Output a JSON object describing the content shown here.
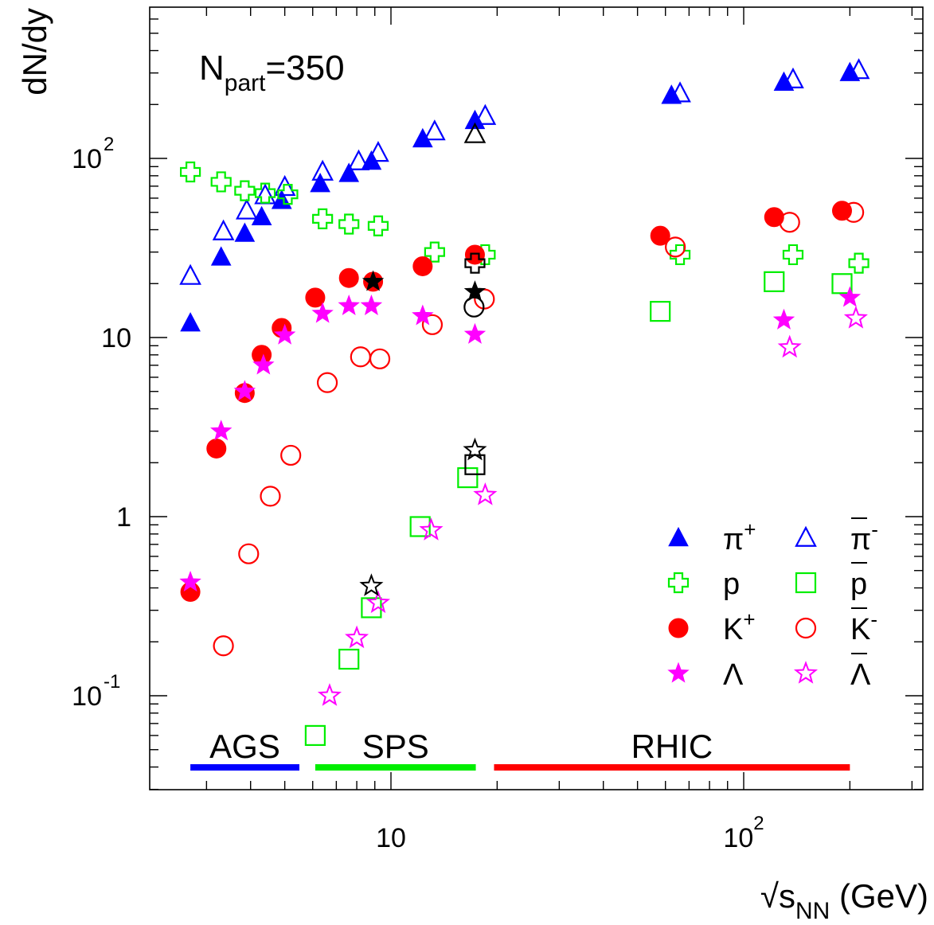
{
  "chart_data": {
    "type": "scatter",
    "title": "",
    "xlabel": "√s",
    "xlabel_sub": "NN",
    "xlabel_unit": " (GeV)",
    "ylabel": "dN/dy",
    "x_log": true,
    "y_log": true,
    "xlim": [
      2.2,
      600
    ],
    "ylim": [
      0.025,
      1000
    ],
    "x_ticks": [
      {
        "value": 10,
        "label": "10"
      },
      {
        "value": 100,
        "label": "10",
        "sup": "2"
      }
    ],
    "y_ticks": [
      {
        "value": 0.1,
        "label": "10",
        "sup": "-1"
      },
      {
        "value": 1,
        "label": "1"
      },
      {
        "value": 10,
        "label": "10"
      },
      {
        "value": 100,
        "label": "10",
        "sup": " 2"
      }
    ],
    "annotation": {
      "main": "N",
      "sub": "part",
      "rest": "=350"
    },
    "energy_ranges": [
      {
        "label": "AGS",
        "x0": 2.7,
        "x1": 5.5,
        "color": "#0000ff"
      },
      {
        "label": "SPS",
        "x0": 6.1,
        "x1": 17.4,
        "color": "#00ee00"
      },
      {
        "label": "RHIC",
        "x0": 19.6,
        "x1": 200,
        "color": "#ff0000"
      }
    ],
    "series": [
      {
        "name": "π",
        "sup": "+",
        "marker": "triangle",
        "filled": true,
        "color": "#0000ff",
        "points": [
          [
            2.7,
            12
          ],
          [
            3.3,
            28
          ],
          [
            3.85,
            38
          ],
          [
            4.3,
            47
          ],
          [
            4.9,
            58
          ],
          [
            6.3,
            72
          ],
          [
            7.6,
            82
          ],
          [
            8.8,
            96
          ],
          [
            12.3,
            128
          ],
          [
            17.3,
            162
          ],
          [
            62.4,
            224
          ],
          [
            130,
            265
          ],
          [
            200,
            300
          ]
        ]
      },
      {
        "name": "π",
        "sup": "-",
        "overline": true,
        "marker": "triangle",
        "filled": false,
        "color": "#0000ff",
        "points": [
          [
            2.7,
            22
          ],
          [
            3.35,
            39
          ],
          [
            3.9,
            51
          ],
          [
            4.4,
            62
          ],
          [
            5.0,
            69
          ],
          [
            6.4,
            84
          ],
          [
            8.1,
            96
          ],
          [
            9.2,
            107
          ],
          [
            13.3,
            141
          ],
          [
            18.5,
            172
          ],
          [
            66,
            230
          ],
          [
            138,
            275
          ],
          [
            212,
            310
          ]
        ]
      },
      {
        "name": "p",
        "marker": "cross",
        "filled": false,
        "color": "#00ee00",
        "points": [
          [
            2.7,
            84
          ],
          [
            3.3,
            74
          ],
          [
            3.85,
            66
          ],
          [
            4.4,
            64
          ],
          [
            5.1,
            63
          ],
          [
            6.4,
            46
          ],
          [
            7.6,
            43
          ],
          [
            9.2,
            42
          ],
          [
            13.3,
            30
          ],
          [
            18.5,
            29
          ],
          [
            66,
            29
          ],
          [
            138,
            29
          ],
          [
            212,
            26
          ]
        ]
      },
      {
        "name": "p",
        "overline": true,
        "marker": "square",
        "filled": false,
        "color": "#00ee00",
        "points": [
          [
            6.1,
            0.06
          ],
          [
            7.6,
            0.16
          ],
          [
            8.8,
            0.31
          ],
          [
            12.1,
            0.88
          ],
          [
            16.5,
            1.65
          ],
          [
            58,
            14
          ],
          [
            122,
            20.5
          ],
          [
            190,
            20
          ]
        ]
      },
      {
        "name": "K",
        "sup": "+",
        "marker": "circle",
        "filled": true,
        "color": "#ff0000",
        "points": [
          [
            2.7,
            0.38
          ],
          [
            3.2,
            2.4
          ],
          [
            3.85,
            4.9
          ],
          [
            4.3,
            8
          ],
          [
            4.9,
            11.3
          ],
          [
            6.1,
            16.7
          ],
          [
            7.6,
            21.5
          ],
          [
            8.9,
            20.5
          ],
          [
            12.3,
            25
          ],
          [
            17.3,
            29
          ],
          [
            58,
            37
          ],
          [
            122,
            47
          ],
          [
            190,
            51
          ]
        ]
      },
      {
        "name": "K",
        "sup": "-",
        "overline": true,
        "marker": "circle",
        "filled": false,
        "color": "#ff0000",
        "points": [
          [
            3.35,
            0.19
          ],
          [
            3.95,
            0.62
          ],
          [
            4.55,
            1.3
          ],
          [
            5.2,
            2.2
          ],
          [
            6.6,
            5.6
          ],
          [
            8.2,
            7.8
          ],
          [
            9.3,
            7.6
          ],
          [
            13.1,
            11.8
          ],
          [
            18.4,
            16.4
          ],
          [
            64,
            32
          ],
          [
            135,
            44
          ],
          [
            205,
            50
          ]
        ]
      },
      {
        "name": "Λ",
        "marker": "star",
        "filled": true,
        "color": "#ff00ff",
        "points": [
          [
            2.7,
            0.43
          ],
          [
            3.3,
            3.0
          ],
          [
            3.85,
            5.0
          ],
          [
            4.35,
            7.0
          ],
          [
            5.0,
            10.3
          ],
          [
            6.4,
            13.6
          ],
          [
            7.6,
            15.0
          ],
          [
            8.8,
            15.0
          ],
          [
            12.3,
            13.2
          ],
          [
            17.3,
            10.4
          ],
          [
            130,
            12.5
          ],
          [
            200,
            16.7
          ]
        ]
      },
      {
        "name": "Λ",
        "overline": true,
        "marker": "star",
        "filled": false,
        "color": "#ff00ff",
        "points": [
          [
            6.7,
            0.1
          ],
          [
            8.0,
            0.21
          ],
          [
            9.2,
            0.33
          ],
          [
            13.0,
            0.84
          ],
          [
            18.5,
            1.32
          ],
          [
            135,
            8.8
          ],
          [
            208,
            12.8
          ]
        ]
      },
      {
        "name": "",
        "marker": "triangle",
        "filled": false,
        "color": "#000000",
        "points": [
          [
            17.3,
            136
          ]
        ]
      },
      {
        "name": "",
        "marker": "cross",
        "filled": false,
        "color": "#000000",
        "points": [
          [
            17.3,
            26
          ]
        ]
      },
      {
        "name": "",
        "marker": "square",
        "filled": false,
        "color": "#000000",
        "points": [
          [
            17.3,
            1.95
          ]
        ]
      },
      {
        "name": "",
        "marker": "circle",
        "filled": false,
        "color": "#000000",
        "points": [
          [
            17.2,
            14.8
          ]
        ]
      },
      {
        "name": "",
        "marker": "star",
        "filled": true,
        "color": "#000000",
        "points": [
          [
            8.9,
            20.5
          ],
          [
            17.3,
            18
          ]
        ]
      },
      {
        "name": "",
        "marker": "star",
        "filled": false,
        "color": "#000000",
        "points": [
          [
            8.8,
            0.41
          ],
          [
            17.3,
            2.35
          ]
        ]
      }
    ],
    "legend": {
      "placement": "bottom-right",
      "rows": [
        [
          0,
          1
        ],
        [
          2,
          3
        ],
        [
          4,
          5
        ],
        [
          6,
          7
        ]
      ]
    }
  }
}
